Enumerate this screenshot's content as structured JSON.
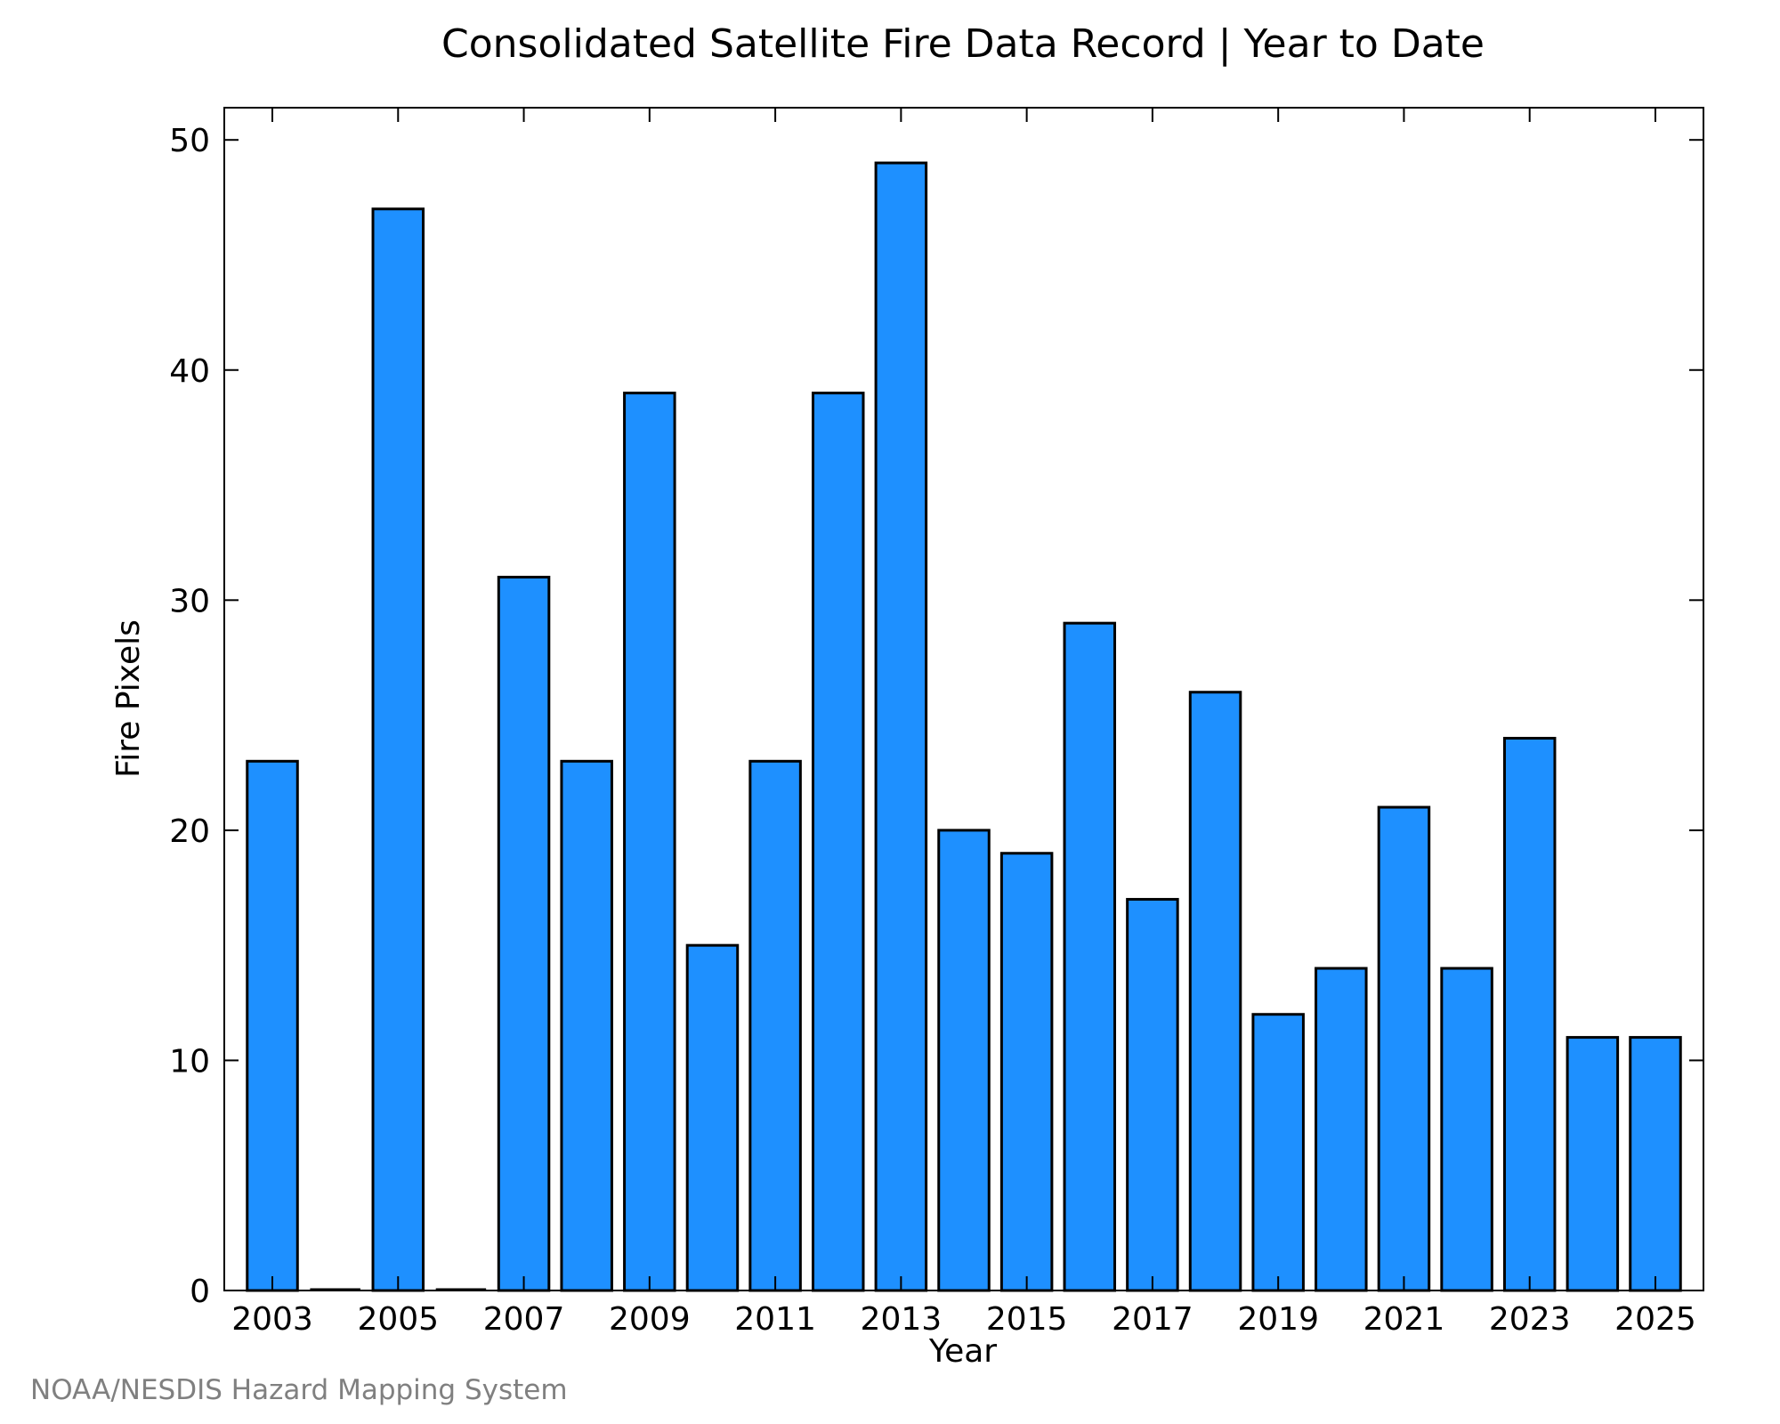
{
  "chart_data": {
    "type": "bar",
    "title": "Consolidated Satellite Fire Data Record | Year to Date",
    "xlabel": "Year",
    "ylabel": "Fire Pixels",
    "categories": [
      "2003",
      "2004",
      "2005",
      "2006",
      "2007",
      "2008",
      "2009",
      "2010",
      "2011",
      "2012",
      "2013",
      "2014",
      "2015",
      "2016",
      "2017",
      "2018",
      "2019",
      "2020",
      "2021",
      "2022",
      "2023",
      "2024",
      "2025"
    ],
    "values": [
      23,
      0,
      47,
      0,
      31,
      23,
      39,
      15,
      23,
      39,
      49,
      20,
      19,
      29,
      17,
      26,
      12,
      14,
      21,
      14,
      24,
      11,
      11
    ],
    "x_tick_labels": [
      "2003",
      "2005",
      "2007",
      "2009",
      "2011",
      "2013",
      "2015",
      "2017",
      "2019",
      "2021",
      "2023",
      "2025"
    ],
    "y_ticks": [
      0,
      10,
      20,
      30,
      40,
      50
    ],
    "ylim": [
      0,
      51.4
    ],
    "grid": false,
    "bar_color": "#1e90ff",
    "bar_edge_color": "#000000"
  },
  "credit": "NOAA/NESDIS Hazard Mapping System"
}
